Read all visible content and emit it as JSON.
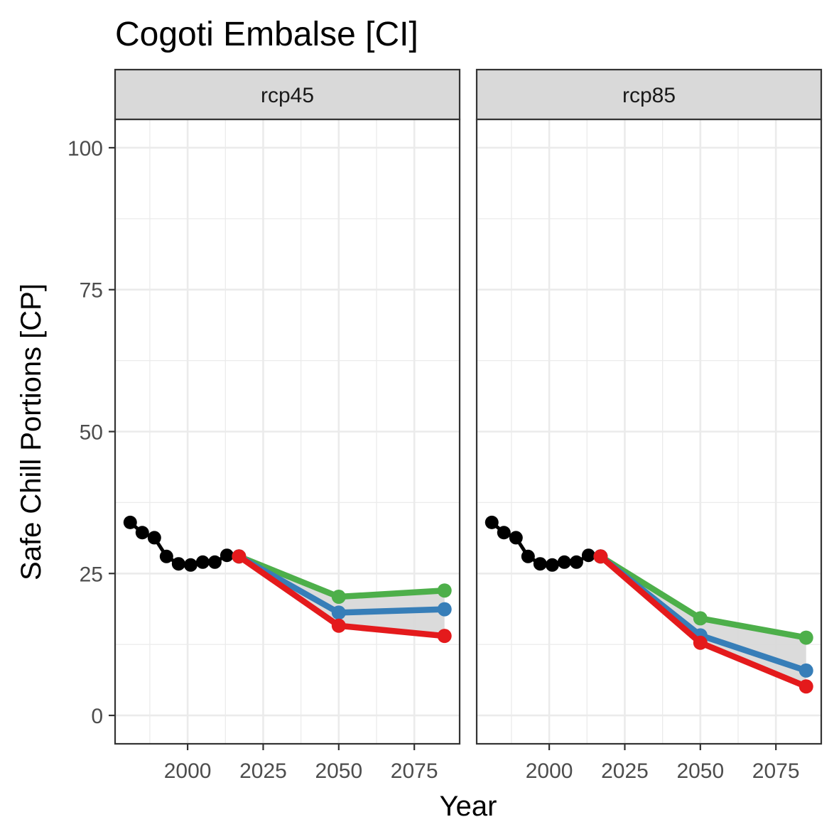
{
  "chart_data": {
    "type": "line",
    "title": "Cogoti Embalse [CI]",
    "xlabel": "Year",
    "ylabel": "Safe Chill Portions [CP]",
    "xlim": [
      1976,
      2090
    ],
    "ylim": [
      -5,
      105
    ],
    "x_ticks": [
      2000,
      2025,
      2050,
      2075
    ],
    "y_ticks": [
      0,
      25,
      50,
      75,
      100
    ],
    "grid": true,
    "legend": "none",
    "colors": {
      "historic": "#000000",
      "low": "#e41a1c",
      "median": "#377eb8",
      "high": "#4daf4a",
      "ribbon": "#d9d9d9"
    },
    "panels": [
      {
        "label": "rcp45",
        "historic": {
          "x": [
            1981,
            1985,
            1989,
            1993,
            1997,
            2001,
            2005,
            2009,
            2013,
            2017
          ],
          "y": [
            34.0,
            32.2,
            31.3,
            28.0,
            26.7,
            26.5,
            27.0,
            27.0,
            28.2,
            28.0
          ]
        },
        "series": [
          {
            "x": [
              2017,
              2050,
              2085
            ],
            "y": [
              28.0,
              20.9,
              22.0
            ],
            "color": "#4daf4a"
          },
          {
            "x": [
              2017,
              2050,
              2085
            ],
            "y": [
              28.0,
              18.1,
              18.7
            ],
            "color": "#377eb8"
          },
          {
            "x": [
              2017,
              2050,
              2085
            ],
            "y": [
              28.0,
              15.8,
              14.0
            ],
            "color": "#e41a1c"
          }
        ]
      },
      {
        "label": "rcp85",
        "historic": {
          "x": [
            1981,
            1985,
            1989,
            1993,
            1997,
            2001,
            2005,
            2009,
            2013,
            2017
          ],
          "y": [
            34.0,
            32.2,
            31.3,
            28.0,
            26.7,
            26.5,
            27.0,
            27.0,
            28.2,
            28.0
          ]
        },
        "series": [
          {
            "x": [
              2017,
              2050,
              2085
            ],
            "y": [
              28.0,
              17.1,
              13.7
            ],
            "color": "#4daf4a"
          },
          {
            "x": [
              2017,
              2050,
              2085
            ],
            "y": [
              28.0,
              14.1,
              7.9
            ],
            "color": "#377eb8"
          },
          {
            "x": [
              2017,
              2050,
              2085
            ],
            "y": [
              28.0,
              12.8,
              5.1
            ],
            "color": "#e41a1c"
          }
        ]
      }
    ]
  }
}
